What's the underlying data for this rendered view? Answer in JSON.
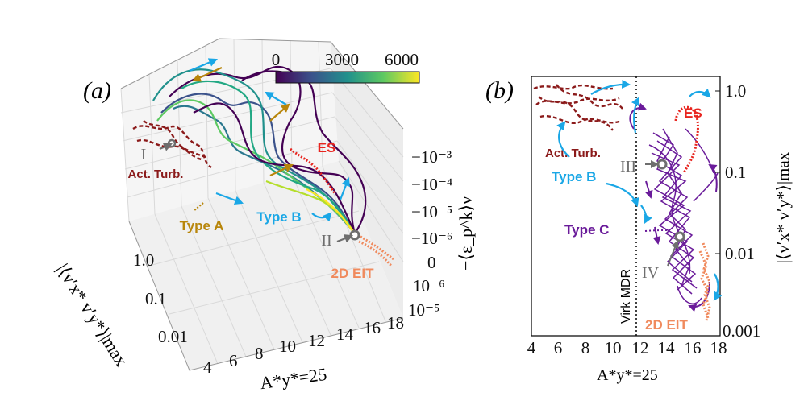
{
  "panel_a": {
    "label": "(a)",
    "colorbar": {
      "ticks": [
        "0",
        "3000",
        "6000"
      ]
    },
    "z_axis_label": "−⟨ε_p^k⟩ν",
    "z_ticks": [
      "−10⁻³",
      "−10⁻⁴",
      "−10⁻⁵",
      "−10⁻⁶",
      "0",
      "10⁻⁶",
      "10⁻⁵"
    ],
    "x_ticks": [
      "4",
      "6",
      "8",
      "10",
      "12",
      "14",
      "16",
      "18"
    ],
    "x_axis_label": "A*y*=25",
    "y_ticks": [
      "1.0",
      "0.1",
      "0.01"
    ],
    "y_axis_label": "|⟨v′x* v′y*⟩|max",
    "annotations": {
      "I": "I",
      "II": "II",
      "act_turb": "Act. Turb.",
      "type_a": "Type A",
      "type_b": "Type B",
      "es": "ES",
      "eit": "2D EIT"
    }
  },
  "panel_b": {
    "label": "(b)",
    "x_ticks": [
      "4",
      "6",
      "8",
      "10",
      "12",
      "14",
      "16",
      "18"
    ],
    "x_axis_label": "A*y*=25",
    "y_ticks": [
      "1.0",
      "0.1",
      "0.01",
      "0.001"
    ],
    "y_axis_label": "|⟨v′x* v′y*⟩|max",
    "vertical_line_label": "Virk MDR",
    "annotations": {
      "III": "III",
      "IV": "IV",
      "act_turb": "Act. Turb.",
      "type_b": "Type B",
      "type_c": "Type C",
      "es": "ES",
      "eit": "2D EIT"
    }
  },
  "colors": {
    "act_turb": "#8b1a1a",
    "type_a": "#b8860b",
    "type_b": "#1aa7e6",
    "type_c": "#6a1b9a",
    "es": "#e8251f",
    "eit": "#f08a5d",
    "marker": "#6e6e6e"
  },
  "chart_data": [
    {
      "type": "line",
      "title": "(a)",
      "projection": "3d",
      "xlabel": "A*y*=25",
      "ylabel": "|⟨v′x* v′y*⟩|max",
      "zlabel": "−⟨ε_p^k⟩ν",
      "xlim": [
        4,
        18
      ],
      "y_scale": "log",
      "y_ticks": [
        1.0,
        0.1,
        0.01
      ],
      "colorbar": {
        "range": [
          0,
          6500
        ],
        "ticks": [
          0,
          3000,
          6000
        ],
        "colormap": "viridis"
      },
      "series": [
        {
          "name": "Act. Turb.",
          "style": "dashed"
        },
        {
          "name": "Type A"
        },
        {
          "name": "Type B"
        },
        {
          "name": "ES",
          "style": "dotted"
        },
        {
          "name": "2D EIT",
          "style": "dotted"
        }
      ],
      "points": [
        {
          "label": "I"
        },
        {
          "label": "II"
        }
      ]
    },
    {
      "type": "line",
      "title": "(b)",
      "xlabel": "A*y*=25",
      "ylabel": "|⟨v′x* v′y*⟩|max",
      "xlim": [
        4,
        18
      ],
      "ylim": [
        0.001,
        1.5
      ],
      "y_scale": "log",
      "vertical_line": {
        "x": 11.9,
        "label": "Virk MDR"
      },
      "series": [
        {
          "name": "Act. Turb.",
          "style": "dashed",
          "x_range": [
            4.0,
            10.5
          ],
          "y_range": [
            0.3,
            1.2
          ]
        },
        {
          "name": "Type B"
        },
        {
          "name": "Type C",
          "x_range": [
            12.5,
            17.5
          ],
          "y_range": [
            0.004,
            0.2
          ]
        },
        {
          "name": "ES",
          "style": "dotted",
          "x_range": [
            14.5,
            16.5
          ],
          "y_range": [
            0.15,
            0.5
          ]
        },
        {
          "name": "2D EIT",
          "style": "dotted",
          "x_range": [
            16.8,
            17.6
          ],
          "y_range": [
            0.002,
            0.012
          ]
        }
      ],
      "points": [
        {
          "label": "III",
          "x": 13.7,
          "y": 0.12
        },
        {
          "label": "IV",
          "x": 15.1,
          "y": 0.016
        }
      ]
    }
  ]
}
